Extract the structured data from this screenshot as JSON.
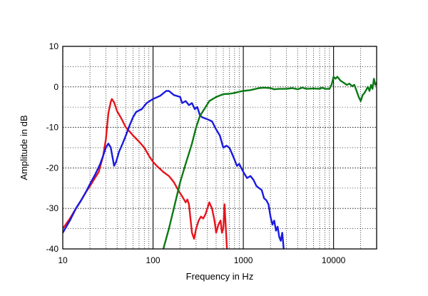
{
  "chart_data": {
    "type": "line",
    "title": "",
    "xlabel": "Frequency  in  Hz",
    "ylabel": "Amplitude  in  dB",
    "xscale": "log",
    "xlim": [
      10,
      30000
    ],
    "ylim": [
      -40,
      10
    ],
    "xticks": [
      10,
      100,
      1000,
      10000
    ],
    "xtick_labels": [
      "10",
      "100",
      "1000",
      "10000"
    ],
    "yticks": [
      10,
      0,
      -10,
      -20,
      -30,
      -40
    ],
    "ytick_labels": [
      "10",
      "0",
      "-10",
      "-20",
      "-30",
      "-40"
    ],
    "grid": true,
    "legend": "none",
    "series": [
      {
        "name": "red",
        "color": "#e8141b",
        "points": [
          [
            10,
            -35
          ],
          [
            12,
            -32.5
          ],
          [
            14,
            -30
          ],
          [
            16,
            -28
          ],
          [
            18,
            -26
          ],
          [
            20,
            -24.5
          ],
          [
            22,
            -23
          ],
          [
            25,
            -21
          ],
          [
            28,
            -17
          ],
          [
            30,
            -13
          ],
          [
            32,
            -6.5
          ],
          [
            34,
            -3.7
          ],
          [
            35,
            -3
          ],
          [
            37,
            -3.8
          ],
          [
            40,
            -6
          ],
          [
            45,
            -8
          ],
          [
            50,
            -10
          ],
          [
            55,
            -11
          ],
          [
            60,
            -12
          ],
          [
            70,
            -13.5
          ],
          [
            80,
            -15
          ],
          [
            90,
            -17
          ],
          [
            100,
            -18.5
          ],
          [
            110,
            -19.5
          ],
          [
            130,
            -21
          ],
          [
            150,
            -22
          ],
          [
            170,
            -23.5
          ],
          [
            190,
            -25.5
          ],
          [
            210,
            -27
          ],
          [
            230,
            -28.5
          ],
          [
            240,
            -27.8
          ],
          [
            250,
            -29
          ],
          [
            270,
            -36
          ],
          [
            285,
            -37.5
          ],
          [
            300,
            -35
          ],
          [
            320,
            -33
          ],
          [
            340,
            -32
          ],
          [
            360,
            -32.5
          ],
          [
            380,
            -31.5
          ],
          [
            400,
            -30
          ],
          [
            420,
            -28.5
          ],
          [
            450,
            -30
          ],
          [
            480,
            -33
          ],
          [
            500,
            -36
          ],
          [
            530,
            -34
          ],
          [
            560,
            -33
          ],
          [
            580,
            -36
          ],
          [
            600,
            -35
          ],
          [
            620,
            -29
          ],
          [
            640,
            -35
          ],
          [
            660,
            -40
          ]
        ]
      },
      {
        "name": "blue",
        "color": "#1a1ae0",
        "points": [
          [
            10,
            -36
          ],
          [
            12,
            -33
          ],
          [
            14,
            -30
          ],
          [
            16,
            -28
          ],
          [
            18,
            -26
          ],
          [
            20,
            -24
          ],
          [
            23,
            -21.5
          ],
          [
            26,
            -19
          ],
          [
            28,
            -17
          ],
          [
            30,
            -15
          ],
          [
            32,
            -14
          ],
          [
            34,
            -15
          ],
          [
            36,
            -18
          ],
          [
            37,
            -19.5
          ],
          [
            39,
            -18.5
          ],
          [
            42,
            -16
          ],
          [
            46,
            -14
          ],
          [
            50,
            -12
          ],
          [
            55,
            -9.5
          ],
          [
            60,
            -7.5
          ],
          [
            65,
            -6.2
          ],
          [
            75,
            -5.5
          ],
          [
            85,
            -4
          ],
          [
            100,
            -3
          ],
          [
            120,
            -2.2
          ],
          [
            140,
            -1
          ],
          [
            150,
            -1
          ],
          [
            170,
            -2
          ],
          [
            200,
            -2.5
          ],
          [
            210,
            -4
          ],
          [
            230,
            -3.5
          ],
          [
            250,
            -4.5
          ],
          [
            270,
            -4
          ],
          [
            290,
            -5.5
          ],
          [
            310,
            -5
          ],
          [
            330,
            -7
          ],
          [
            350,
            -7.5
          ],
          [
            400,
            -8
          ],
          [
            450,
            -8.5
          ],
          [
            500,
            -10.5
          ],
          [
            550,
            -12
          ],
          [
            600,
            -15
          ],
          [
            650,
            -14.5
          ],
          [
            700,
            -15
          ],
          [
            750,
            -16.5
          ],
          [
            800,
            -18
          ],
          [
            850,
            -19.5
          ],
          [
            900,
            -19
          ],
          [
            1000,
            -21
          ],
          [
            1100,
            -22.5
          ],
          [
            1200,
            -22
          ],
          [
            1300,
            -23
          ],
          [
            1400,
            -24.5
          ],
          [
            1500,
            -25
          ],
          [
            1600,
            -25.5
          ],
          [
            1700,
            -27.5
          ],
          [
            1800,
            -28
          ],
          [
            1900,
            -29
          ],
          [
            2000,
            -32
          ],
          [
            2100,
            -34
          ],
          [
            2200,
            -33
          ],
          [
            2300,
            -35.5
          ],
          [
            2400,
            -34.5
          ],
          [
            2500,
            -37
          ],
          [
            2600,
            -38
          ],
          [
            2700,
            -36
          ],
          [
            2800,
            -40
          ]
        ]
      },
      {
        "name": "green",
        "color": "#0a7a14",
        "points": [
          [
            130,
            -40
          ],
          [
            150,
            -35
          ],
          [
            170,
            -30
          ],
          [
            200,
            -23.5
          ],
          [
            230,
            -19
          ],
          [
            270,
            -14
          ],
          [
            300,
            -10
          ],
          [
            330,
            -7.2
          ],
          [
            370,
            -5.5
          ],
          [
            420,
            -3.5
          ],
          [
            500,
            -2.5
          ],
          [
            600,
            -1.8
          ],
          [
            700,
            -1.7
          ],
          [
            800,
            -1.5
          ],
          [
            900,
            -1.2
          ],
          [
            1000,
            -1
          ],
          [
            1200,
            -0.8
          ],
          [
            1500,
            -0.3
          ],
          [
            1700,
            -0.2
          ],
          [
            2000,
            -0.3
          ],
          [
            2200,
            -0.6
          ],
          [
            2500,
            -0.5
          ],
          [
            3000,
            -0.5
          ],
          [
            3500,
            -0.3
          ],
          [
            4000,
            -0.6
          ],
          [
            4500,
            -0.2
          ],
          [
            5000,
            -0.5
          ],
          [
            6000,
            -0.4
          ],
          [
            7000,
            -0.5
          ],
          [
            7500,
            -0.2
          ],
          [
            8000,
            -0.5
          ],
          [
            9000,
            -0.5
          ],
          [
            9500,
            0.5
          ],
          [
            10000,
            2.5
          ],
          [
            10500,
            2
          ],
          [
            11000,
            2.5
          ],
          [
            12000,
            1.5
          ],
          [
            13000,
            1
          ],
          [
            14000,
            0.5
          ],
          [
            15000,
            0.8
          ],
          [
            16000,
            0.2
          ],
          [
            17000,
            0.5
          ],
          [
            18000,
            -1
          ],
          [
            19000,
            -2.5
          ],
          [
            20000,
            -3.5
          ],
          [
            21000,
            -2
          ],
          [
            22000,
            -1.5
          ],
          [
            24000,
            0
          ],
          [
            25000,
            -1
          ],
          [
            26000,
            0.5
          ],
          [
            27000,
            -0.5
          ],
          [
            28000,
            2
          ],
          [
            29000,
            0.5
          ],
          [
            30000,
            1
          ]
        ]
      }
    ]
  }
}
